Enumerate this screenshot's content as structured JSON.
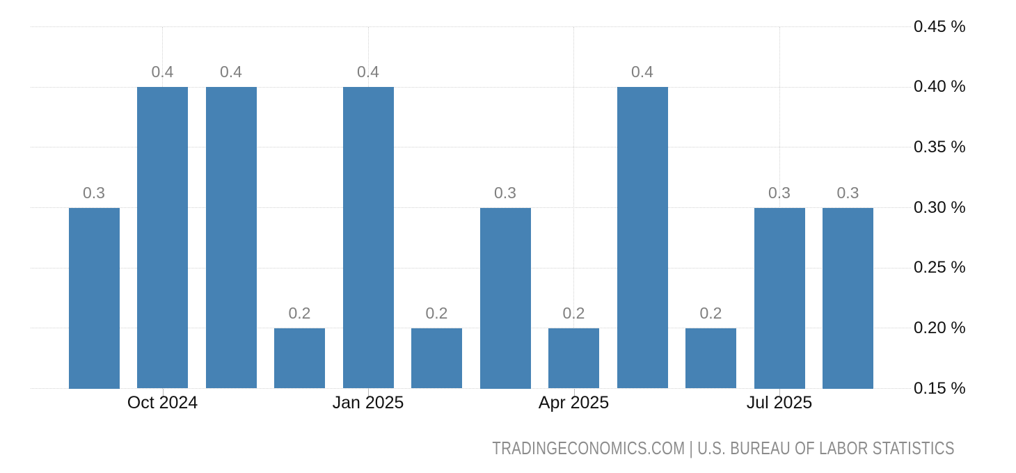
{
  "footer": {
    "text": "TRADINGECONOMICS.COM | U.S. BUREAU OF LABOR STATISTICS"
  },
  "colors": {
    "bar": "#4682b4",
    "value_label": "#7f7f7f",
    "axis_text": "#111111",
    "grid": "#d2d2d2",
    "tick_mark": "#b9b9b9",
    "footer_text": "#8b8b8b",
    "background": "#ffffff"
  },
  "chart_data": {
    "type": "bar",
    "values": [
      0.3,
      0.4,
      0.4,
      0.2,
      0.4,
      0.2,
      0.3,
      0.2,
      0.4,
      0.2,
      0.3,
      0.3
    ],
    "bar_value_labels": [
      "0.3",
      "0.4",
      "0.4",
      "0.2",
      "0.4",
      "0.2",
      "0.3",
      "0.2",
      "0.4",
      "0.2",
      "0.3",
      "0.3"
    ],
    "x_ticks": [
      {
        "label": "Oct 2024",
        "bar_index": 1
      },
      {
        "label": "Jan 2025",
        "bar_index": 4
      },
      {
        "label": "Apr 2025",
        "bar_index": 7
      },
      {
        "label": "Jul 2025",
        "bar_index": 10
      }
    ],
    "y_ticks": [
      {
        "label": "0.45 %",
        "value": 0.45
      },
      {
        "label": "0.40 %",
        "value": 0.4
      },
      {
        "label": "0.35 %",
        "value": 0.35
      },
      {
        "label": "0.30 %",
        "value": 0.3
      },
      {
        "label": "0.25 %",
        "value": 0.25
      },
      {
        "label": "0.20 %",
        "value": 0.2
      },
      {
        "label": "0.15 %",
        "value": 0.15
      }
    ],
    "ylim": [
      0.15,
      0.45
    ],
    "title": "",
    "xlabel": "",
    "ylabel": "",
    "grid": true,
    "legend": false,
    "y_axis_side": "right"
  }
}
